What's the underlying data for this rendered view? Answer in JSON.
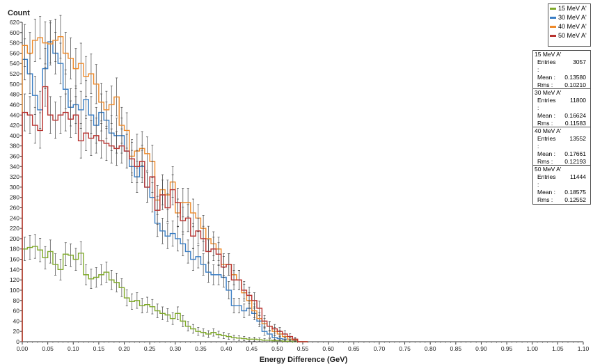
{
  "chart_data": {
    "type": "line",
    "title": "",
    "xlabel": "Energy Difference (GeV)",
    "ylabel": "Count",
    "xlim": [
      0,
      1.1
    ],
    "ylim": [
      0,
      620
    ],
    "xticks": [
      "0.00",
      "0.05",
      "0.10",
      "0.15",
      "0.20",
      "0.25",
      "0.30",
      "0.35",
      "0.40",
      "0.45",
      "0.50",
      "0.55",
      "0.60",
      "0.65",
      "0.70",
      "0.75",
      "0.80",
      "0.85",
      "0.90",
      "0.95",
      "1.00",
      "1.05",
      "1.10"
    ],
    "yticks": [
      "0",
      "20",
      "40",
      "60",
      "80",
      "100",
      "120",
      "140",
      "160",
      "180",
      "200",
      "220",
      "240",
      "260",
      "280",
      "300",
      "320",
      "340",
      "360",
      "380",
      "400",
      "420",
      "440",
      "460",
      "480",
      "500",
      "520",
      "540",
      "560",
      "580",
      "600",
      "620"
    ],
    "bin_width": 0.01,
    "legend_position": "top-right",
    "series": [
      {
        "name": "15 MeV A'",
        "color": "#7fa92a",
        "values": [
          180,
          183,
          185,
          178,
          163,
          175,
          150,
          140,
          170,
          168,
          160,
          172,
          130,
          122,
          125,
          130,
          135,
          120,
          115,
          105,
          85,
          78,
          80,
          70,
          72,
          68,
          60,
          55,
          52,
          45,
          55,
          40,
          30,
          25,
          20,
          18,
          15,
          18,
          14,
          12,
          10,
          8,
          7,
          6,
          5,
          5,
          4,
          3,
          3,
          2,
          2,
          1,
          1,
          0,
          0,
          0
        ]
      },
      {
        "name": "30 MeV A'",
        "color": "#3a7ec4",
        "values": [
          548,
          520,
          478,
          450,
          530,
          582,
          560,
          540,
          490,
          455,
          460,
          450,
          470,
          440,
          420,
          445,
          430,
          405,
          400,
          400,
          370,
          340,
          320,
          340,
          300,
          280,
          230,
          215,
          205,
          210,
          200,
          190,
          175,
          160,
          165,
          150,
          135,
          130,
          130,
          125,
          100,
          70,
          70,
          60,
          65,
          55,
          40,
          20,
          15,
          8,
          6,
          5,
          5,
          2,
          0,
          0
        ]
      },
      {
        "name": "40 MeV A'",
        "color": "#ee8a2a",
        "values": [
          575,
          560,
          585,
          590,
          580,
          578,
          585,
          592,
          560,
          550,
          530,
          540,
          515,
          520,
          500,
          465,
          450,
          460,
          475,
          420,
          410,
          360,
          370,
          375,
          365,
          350,
          275,
          295,
          285,
          310,
          250,
          270,
          270,
          250,
          240,
          220,
          200,
          190,
          180,
          150,
          150,
          130,
          120,
          95,
          80,
          60,
          45,
          35,
          30,
          20,
          15,
          10,
          5,
          3,
          0,
          0
        ]
      },
      {
        "name": "50 MeV A'",
        "color": "#b8322f",
        "values": [
          445,
          440,
          420,
          410,
          495,
          440,
          430,
          440,
          445,
          432,
          440,
          390,
          405,
          395,
          400,
          390,
          385,
          380,
          375,
          380,
          370,
          355,
          340,
          350,
          300,
          320,
          255,
          285,
          260,
          295,
          270,
          235,
          240,
          205,
          215,
          200,
          175,
          180,
          170,
          145,
          150,
          120,
          120,
          100,
          90,
          80,
          65,
          40,
          30,
          25,
          20,
          15,
          10,
          5,
          0,
          0
        ]
      }
    ]
  },
  "stats": [
    {
      "name": "15 MeV A'",
      "entries_label": "Entries :",
      "entries": "3057",
      "mean_label": "Mean :",
      "mean": "0.13580",
      "rms_label": "Rms :",
      "rms": "0.10210"
    },
    {
      "name": "30 MeV A'",
      "entries_label": "Entries :",
      "entries": "11800",
      "mean_label": "Mean :",
      "mean": "0.16624",
      "rms_label": "Rms :",
      "rms": "0.11583"
    },
    {
      "name": "40 MeV A'",
      "entries_label": "Entries :",
      "entries": "13552",
      "mean_label": "Mean :",
      "mean": "0.17661",
      "rms_label": "Rms :",
      "rms": "0.12193"
    },
    {
      "name": "50 MeV A'",
      "entries_label": "Entries :",
      "entries": "11444",
      "mean_label": "Mean :",
      "mean": "0.18575",
      "rms_label": "Rms :",
      "rms": "0.12552"
    }
  ]
}
